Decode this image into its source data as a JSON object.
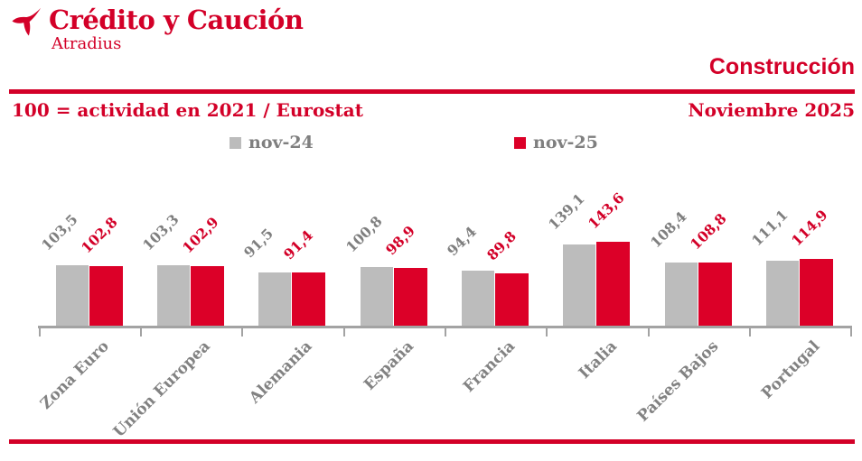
{
  "brand": {
    "title": "Crédito y Caución",
    "subtitle": "Atradius",
    "icon": "bird-logo-icon"
  },
  "header": {
    "section_title": "Construcción",
    "note": "100 = actividad en 2021 / Eurostat",
    "date": "Noviembre 2025"
  },
  "legend": {
    "items": [
      {
        "label": "nov-24",
        "color": "#bcbcbc"
      },
      {
        "label": "nov-25",
        "color": "#dc0028"
      }
    ]
  },
  "chart_data": {
    "type": "bar",
    "title": "Construcción",
    "subtitle": "100 = actividad en 2021 / Eurostat",
    "date": "Noviembre 2025",
    "value_format": "decimal-comma",
    "categories": [
      "Zona Euro",
      "Unión Europea",
      "Alemania",
      "España",
      "Francia",
      "Italia",
      "Países Bajos",
      "Portugal"
    ],
    "series": [
      {
        "name": "nov-24",
        "color": "#bcbcbc",
        "label_color": "#7f7f7f",
        "values": [
          103.5,
          103.3,
          91.5,
          100.8,
          94.4,
          139.1,
          108.4,
          111.1
        ]
      },
      {
        "name": "nov-25",
        "color": "#dc0028",
        "label_color": "#d30028",
        "values": [
          102.8,
          102.9,
          91.4,
          98.9,
          89.8,
          143.6,
          108.8,
          114.9
        ]
      }
    ],
    "ylim": [
      0,
      155
    ],
    "grid": false,
    "legend_position": "top",
    "baseline_meaning": "index, 100 = activity in 2021"
  },
  "colors": {
    "accent_red": "#d30028",
    "bar_red": "#dc0028",
    "bar_gray": "#bcbcbc",
    "value_text_gray": "#7f7f7f",
    "category_text_gray": "#828282",
    "axis_gray": "#a3a3a3"
  }
}
